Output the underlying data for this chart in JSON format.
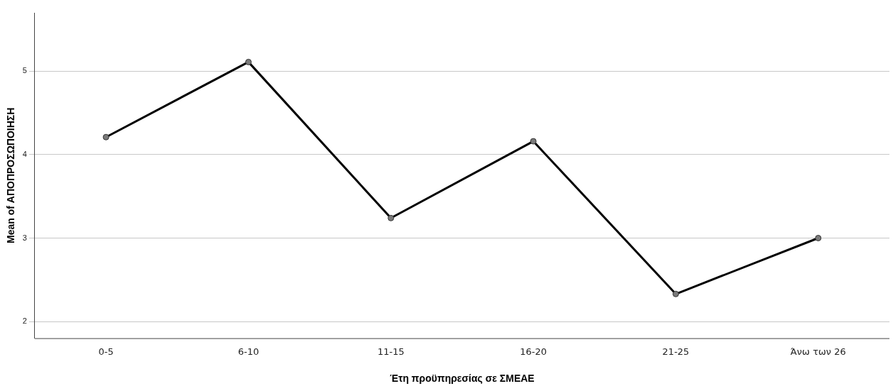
{
  "chart_data": {
    "type": "line",
    "xlabel": "Έτη προϋπηρεσίας σε ΣΜΕΑΕ",
    "ylabel": "Mean of ΑΠΟΠΡΟΣΩΠΟΙΗΣΗ",
    "categories": [
      "0-5",
      "6-10",
      "11-15",
      "16-20",
      "21-25",
      "Άνω των 26"
    ],
    "series": [
      {
        "color": "#000000",
        "values": [
          4.21,
          5.11,
          3.24,
          4.16,
          2.33,
          3.0
        ]
      }
    ],
    "ylim": [
      1.8,
      5.7
    ],
    "yticks": [
      2,
      3,
      4,
      5
    ],
    "grid": "y",
    "marker": "circle",
    "line_style": "solid",
    "legend": false
  }
}
